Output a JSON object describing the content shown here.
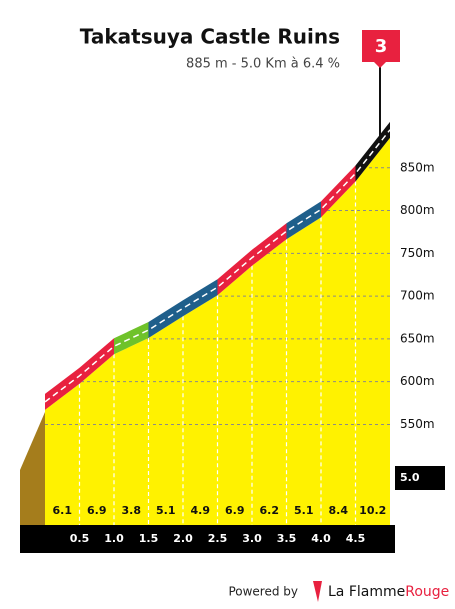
{
  "title": "Takatsuya Castle Ruins",
  "subtitle": "885 m - 5.0 Km à 6.4 %",
  "flag": "3",
  "chart_data": {
    "type": "profile",
    "x": [
      0,
      0.5,
      1,
      1.5,
      2,
      2.5,
      3,
      3.5,
      4,
      4.5,
      5
    ],
    "elevation": [
      567,
      597.5,
      632,
      651,
      676.5,
      701,
      735.5,
      766.5,
      792,
      834,
      885
    ],
    "gradients": [
      6.1,
      6.9,
      3.8,
      5.1,
      4.9,
      6.9,
      6.2,
      5.1,
      8.4,
      10.2
    ],
    "gradient_colors": [
      "#e8213f",
      "#e8213f",
      "#6fc22a",
      "#1f5f8b",
      "#1f5f8b",
      "#e8213f",
      "#e8213f",
      "#1f5f8b",
      "#e8213f",
      "#111111"
    ],
    "fill_color": "#fff200",
    "xlim": [
      0,
      5
    ],
    "xticks": [
      0.5,
      {
        "value": 1,
        "label": "1.0"
      },
      1.5,
      {
        "value": 2,
        "label": "2.0"
      },
      2.5,
      {
        "value": 3,
        "label": "3.0"
      },
      3.5,
      {
        "value": 4,
        "label": "4.0"
      },
      4.5,
      {
        "value": 5,
        "label": "5.0"
      }
    ],
    "ylim": [
      450,
      900
    ],
    "yticks": [
      {
        "value": 550,
        "label": "550m"
      },
      {
        "value": 600,
        "label": "600m"
      },
      {
        "value": 650,
        "label": "650m"
      },
      {
        "value": 700,
        "label": "700m"
      },
      {
        "value": 750,
        "label": "750m"
      },
      {
        "value": 800,
        "label": "800m"
      },
      {
        "value": 850,
        "label": "850m"
      }
    ],
    "grid": true
  },
  "footer": {
    "powered": "Powered by",
    "brand": [
      "La Flamme",
      "Rouge"
    ]
  }
}
